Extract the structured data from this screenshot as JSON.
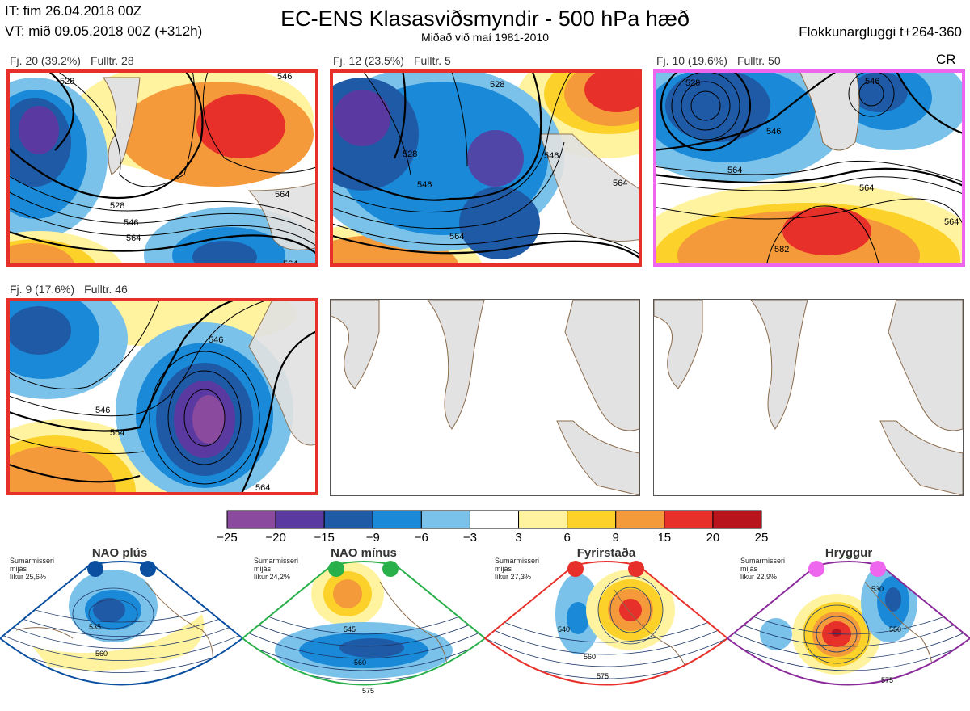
{
  "header": {
    "it": "IT: fim 26.04.2018 00Z",
    "vt": "VT: mið 09.05.2018 00Z  (+312h)",
    "title": "EC-ENS Klasasviðsmyndir - 500 hPa hæð",
    "subtitle": "Miðað við maí 1981-2010",
    "window": "Flokkunargluggi t+264-360"
  },
  "colors": {
    "red_frame": "#e8302a",
    "magenta_frame": "#ee66ee",
    "land": "#e2e2e2",
    "coast": "#8a6a4a"
  },
  "panels": [
    {
      "fj": "Fj. 20 (39.2%)",
      "fulltr": "Fulltr. 28",
      "frame": "red",
      "contour_labels": [
        "528",
        "546",
        "528",
        "546",
        "564",
        "564",
        "564"
      ]
    },
    {
      "fj": "Fj. 12 (23.5%)",
      "fulltr": "Fulltr. 5",
      "frame": "red",
      "contour_labels": [
        "528",
        "528",
        "546",
        "546",
        "564",
        "564"
      ]
    },
    {
      "fj": "Fj. 10 (19.6%)",
      "fulltr": "Fulltr. 50",
      "frame": "magenta",
      "tag": "CR",
      "contour_labels": [
        "528",
        "546",
        "546",
        "564",
        "564",
        "582",
        "564"
      ]
    },
    {
      "fj": "Fj. 9 (17.6%)",
      "fulltr": "Fulltr. 46",
      "frame": "red",
      "contour_labels": [
        "546",
        "546",
        "564",
        "564"
      ]
    }
  ],
  "chart_data": {
    "type": "heatmap",
    "colorbar": {
      "ticks": [
        "−25",
        "−20",
        "−15",
        "−9",
        "−6",
        "−3",
        "3",
        "6",
        "9",
        "15",
        "20",
        "25"
      ],
      "colors": [
        "#8a4a9e",
        "#5a3aa0",
        "#1f5aa6",
        "#1a8ad8",
        "#7ac2ea",
        "#ffffff",
        "#fff3a0",
        "#fcd22a",
        "#f59a3a",
        "#e8302a",
        "#b8141e"
      ]
    }
  },
  "regimes": [
    {
      "name": "NAO plús",
      "note": [
        "Sumarmisseri",
        "mijás",
        "líkur 25,6%"
      ],
      "color": "#0a4fa0",
      "border": "#0a4fa0",
      "labels": [
        "535",
        "560"
      ]
    },
    {
      "name": "NAO mínus",
      "note": [
        "Sumarmisseri",
        "mijás",
        "líkur 24,2%"
      ],
      "color": "#2ab04a",
      "border": "#2ab04a",
      "labels": [
        "545",
        "560",
        "575"
      ]
    },
    {
      "name": "Fyrirstaða",
      "note": [
        "Sumarmisseri",
        "mijás",
        "líkur 27,3%"
      ],
      "color": "#e8302a",
      "border": "#e8302a",
      "labels": [
        "540",
        "560",
        "575"
      ]
    },
    {
      "name": "Hryggur",
      "note": [
        "Sumarmisseri",
        "mijás",
        "líkur 22,9%"
      ],
      "color": "#ee66ee",
      "border": "#8a2a9a",
      "labels": [
        "530",
        "550",
        "575"
      ]
    }
  ]
}
